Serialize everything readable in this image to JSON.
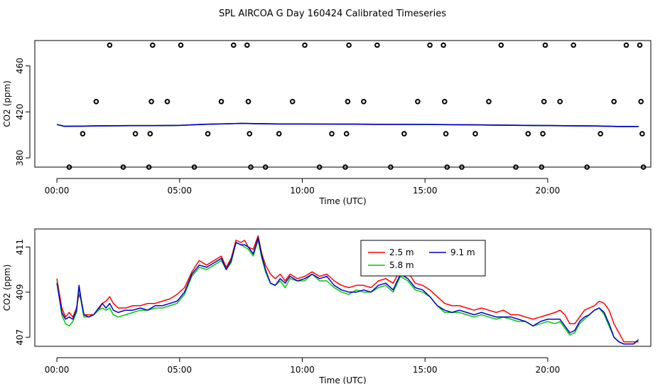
{
  "title": "SPL AIRCOA G  Day 160424  Calibrated Timeseries",
  "chart_data": [
    {
      "type": "scatter",
      "xlabel": "Time (UTC)",
      "ylabel": "CO2 (ppm)",
      "xlim": [
        -0.9,
        24.2
      ],
      "ylim": [
        372,
        482
      ],
      "x_ticks": [
        0,
        5,
        10,
        15,
        20
      ],
      "x_tick_labels": [
        "00:00",
        "05:00",
        "10:00",
        "15:00",
        "20:00"
      ],
      "y_ticks": [
        380,
        420,
        460
      ],
      "y_tick_labels": [
        "380",
        "420",
        "460"
      ],
      "calibration_points": [
        [
          0.5,
          372
        ],
        [
          1.05,
          401
        ],
        [
          1.6,
          429
        ],
        [
          2.15,
          478
        ],
        [
          2.7,
          372
        ],
        [
          3.2,
          401
        ],
        [
          3.75,
          372
        ],
        [
          3.8,
          401
        ],
        [
          3.85,
          429
        ],
        [
          3.9,
          478
        ],
        [
          4.5,
          429
        ],
        [
          5.05,
          478
        ],
        [
          5.6,
          372
        ],
        [
          6.15,
          401
        ],
        [
          6.7,
          429
        ],
        [
          7.2,
          478
        ],
        [
          7.75,
          478
        ],
        [
          7.8,
          429
        ],
        [
          7.85,
          401
        ],
        [
          7.9,
          372
        ],
        [
          8.5,
          372
        ],
        [
          9.05,
          401
        ],
        [
          9.6,
          429
        ],
        [
          10.1,
          478
        ],
        [
          10.7,
          372
        ],
        [
          11.2,
          401
        ],
        [
          11.75,
          372
        ],
        [
          11.8,
          401
        ],
        [
          11.85,
          429
        ],
        [
          11.9,
          478
        ],
        [
          12.5,
          429
        ],
        [
          13.05,
          478
        ],
        [
          13.6,
          372
        ],
        [
          14.15,
          401
        ],
        [
          14.7,
          429
        ],
        [
          15.2,
          478
        ],
        [
          15.75,
          478
        ],
        [
          15.8,
          429
        ],
        [
          15.85,
          401
        ],
        [
          15.9,
          372
        ],
        [
          16.5,
          372
        ],
        [
          17.05,
          401
        ],
        [
          17.6,
          429
        ],
        [
          18.1,
          478
        ],
        [
          18.7,
          372
        ],
        [
          19.2,
          401
        ],
        [
          19.75,
          372
        ],
        [
          19.8,
          401
        ],
        [
          19.85,
          429
        ],
        [
          19.9,
          478
        ],
        [
          20.5,
          429
        ],
        [
          21.05,
          478
        ],
        [
          21.6,
          372
        ],
        [
          22.15,
          401
        ],
        [
          22.7,
          429
        ],
        [
          23.2,
          478
        ],
        [
          23.75,
          478
        ],
        [
          23.8,
          429
        ],
        [
          23.85,
          401
        ],
        [
          23.9,
          372
        ]
      ],
      "series": [
        {
          "color": "#ff0000",
          "x": [
            0,
            0.3,
            1,
            2,
            3,
            4,
            5,
            6,
            7,
            7.5,
            8,
            9,
            10,
            11,
            12,
            13,
            14,
            15,
            16,
            17,
            18,
            19,
            20,
            21,
            22,
            23,
            23.7
          ],
          "values": [
            409,
            407.5,
            407.6,
            407.9,
            408.0,
            408.0,
            408.3,
            409.2,
            409.7,
            410.0,
            409.8,
            409.5,
            409.5,
            409.4,
            409.3,
            409.2,
            409.2,
            409.1,
            408.9,
            408.7,
            408.5,
            408.3,
            408.1,
            407.9,
            407.7,
            407.3,
            407.2
          ]
        },
        {
          "color": "#00cc00",
          "x": [
            0,
            0.3,
            1,
            2,
            3,
            4,
            5,
            6,
            7,
            7.5,
            8,
            9,
            10,
            11,
            12,
            13,
            14,
            15,
            16,
            17,
            18,
            19,
            20,
            21,
            22,
            23,
            23.7
          ],
          "values": [
            409,
            407.5,
            407.6,
            407.9,
            408.0,
            408.0,
            408.3,
            409.2,
            409.7,
            410.0,
            409.8,
            409.5,
            409.5,
            409.4,
            409.3,
            409.2,
            409.2,
            409.1,
            408.9,
            408.7,
            408.5,
            408.3,
            408.1,
            407.9,
            407.7,
            407.3,
            407.2
          ]
        },
        {
          "color": "#0000cc",
          "x": [
            0,
            0.3,
            1,
            2,
            3,
            4,
            5,
            6,
            7,
            7.5,
            8,
            9,
            10,
            11,
            12,
            13,
            14,
            15,
            16,
            17,
            18,
            19,
            20,
            21,
            22,
            23,
            23.7
          ],
          "values": [
            409,
            407.5,
            407.6,
            407.9,
            408.0,
            408.0,
            408.3,
            409.2,
            409.7,
            410.0,
            409.8,
            409.5,
            409.5,
            409.4,
            409.3,
            409.2,
            409.2,
            409.1,
            408.9,
            408.7,
            408.5,
            408.3,
            408.1,
            407.9,
            407.7,
            407.3,
            407.2
          ]
        }
      ]
    },
    {
      "type": "line",
      "xlabel": "Time (UTC)",
      "ylabel": "CO2 (ppm)",
      "xlim": [
        -0.9,
        24.2
      ],
      "ylim": [
        406.6,
        411.8
      ],
      "x_ticks": [
        0,
        5,
        10,
        15,
        20
      ],
      "x_tick_labels": [
        "00:00",
        "05:00",
        "10:00",
        "15:00",
        "20:00"
      ],
      "y_ticks": [
        407,
        409,
        411
      ],
      "y_tick_labels": [
        "407",
        "409",
        "411"
      ],
      "legend": "top-center",
      "series": [
        {
          "name": "2.5 m",
          "color": "#ff0000",
          "x": [
            0,
            0.2,
            0.35,
            0.5,
            0.65,
            0.8,
            0.9,
            1.0,
            1.1,
            1.3,
            1.5,
            1.7,
            1.85,
            2.0,
            2.15,
            2.3,
            2.5,
            2.8,
            3.1,
            3.4,
            3.7,
            4.0,
            4.3,
            4.6,
            4.9,
            5.2,
            5.5,
            5.8,
            6.1,
            6.4,
            6.7,
            6.9,
            7.1,
            7.3,
            7.5,
            7.65,
            7.8,
            8.0,
            8.2,
            8.35,
            8.5,
            8.7,
            8.9,
            9.1,
            9.3,
            9.5,
            9.8,
            10.1,
            10.4,
            10.7,
            11.0,
            11.3,
            11.6,
            11.9,
            12.2,
            12.5,
            12.8,
            13.1,
            13.4,
            13.7,
            14.0,
            14.3,
            14.6,
            14.9,
            15.2,
            15.5,
            15.8,
            16.1,
            16.4,
            16.7,
            17.0,
            17.3,
            17.6,
            17.9,
            18.2,
            18.5,
            18.8,
            19.1,
            19.4,
            19.7,
            20.0,
            20.3,
            20.5,
            20.7,
            20.9,
            21.1,
            21.3,
            21.5,
            21.7,
            21.9,
            22.1,
            22.3,
            22.5,
            22.7,
            22.9,
            23.1,
            23.3,
            23.5,
            23.7
          ],
          "values": [
            409.6,
            408.3,
            407.9,
            408.1,
            407.9,
            408.3,
            408.9,
            408.6,
            408.0,
            408.0,
            408.0,
            408.2,
            408.5,
            408.6,
            408.8,
            408.5,
            408.3,
            408.3,
            408.4,
            408.4,
            408.5,
            408.5,
            408.6,
            408.7,
            408.9,
            409.2,
            409.9,
            410.4,
            410.2,
            410.4,
            410.6,
            410.1,
            410.5,
            411.3,
            411.2,
            411.3,
            411.0,
            410.9,
            411.5,
            410.7,
            410.2,
            409.8,
            409.6,
            409.8,
            409.5,
            409.8,
            409.6,
            409.7,
            409.9,
            409.7,
            409.8,
            409.5,
            409.3,
            409.2,
            409.3,
            409.3,
            409.2,
            409.5,
            409.6,
            409.4,
            410.0,
            409.9,
            409.4,
            409.3,
            409.1,
            408.8,
            408.5,
            408.4,
            408.4,
            408.3,
            408.2,
            408.3,
            408.2,
            408.1,
            408.2,
            408.0,
            408.0,
            407.9,
            407.8,
            407.9,
            408.0,
            408.1,
            408.2,
            408.0,
            407.6,
            407.6,
            407.9,
            408.2,
            408.3,
            408.4,
            408.6,
            408.5,
            408.2,
            407.6,
            407.2,
            406.8,
            406.8,
            406.8,
            406.8
          ]
        },
        {
          "name": "5.8 m",
          "color": "#00cc00",
          "x": [
            0,
            0.2,
            0.35,
            0.5,
            0.65,
            0.8,
            0.9,
            1.0,
            1.1,
            1.3,
            1.5,
            1.7,
            1.85,
            2.0,
            2.15,
            2.3,
            2.5,
            2.8,
            3.1,
            3.4,
            3.7,
            4.0,
            4.3,
            4.6,
            4.9,
            5.2,
            5.5,
            5.8,
            6.1,
            6.4,
            6.7,
            6.9,
            7.1,
            7.3,
            7.5,
            7.65,
            7.8,
            8.0,
            8.2,
            8.35,
            8.5,
            8.7,
            8.9,
            9.1,
            9.3,
            9.5,
            9.8,
            10.1,
            10.4,
            10.7,
            11.0,
            11.3,
            11.6,
            11.9,
            12.2,
            12.5,
            12.8,
            13.1,
            13.4,
            13.7,
            14.0,
            14.3,
            14.6,
            14.9,
            15.2,
            15.5,
            15.8,
            16.1,
            16.4,
            16.7,
            17.0,
            17.3,
            17.6,
            17.9,
            18.2,
            18.5,
            18.8,
            19.1,
            19.4,
            19.7,
            20.0,
            20.3,
            20.5,
            20.7,
            20.9,
            21.1,
            21.3,
            21.5,
            21.7,
            21.9,
            22.1,
            22.3,
            22.5,
            22.7,
            22.9,
            23.1,
            23.3,
            23.5,
            23.7
          ],
          "values": [
            409.5,
            408.0,
            407.6,
            407.5,
            407.7,
            408.1,
            409.2,
            408.5,
            407.9,
            407.9,
            408.0,
            408.2,
            408.3,
            408.2,
            408.3,
            408.0,
            407.9,
            408.0,
            408.1,
            408.2,
            408.2,
            408.3,
            408.3,
            408.4,
            408.5,
            408.9,
            409.7,
            410.1,
            410.0,
            410.2,
            410.4,
            410.0,
            410.3,
            411.2,
            411.1,
            411.0,
            410.9,
            410.6,
            411.3,
            410.5,
            409.9,
            409.4,
            409.3,
            409.5,
            409.2,
            409.6,
            409.5,
            409.5,
            409.8,
            409.5,
            409.5,
            409.2,
            409.0,
            408.9,
            409.1,
            409.0,
            409.0,
            409.2,
            409.3,
            409.0,
            409.7,
            409.5,
            409.1,
            409.0,
            408.8,
            408.4,
            408.1,
            408.1,
            408.1,
            408.0,
            407.9,
            408.0,
            407.9,
            407.8,
            407.9,
            407.8,
            407.7,
            407.7,
            407.5,
            407.6,
            407.7,
            407.6,
            407.7,
            407.4,
            407.1,
            407.2,
            407.6,
            407.8,
            408.0,
            408.2,
            408.3,
            408.0,
            407.5,
            407.0,
            406.8,
            406.7,
            406.7,
            406.7,
            406.9
          ]
        },
        {
          "name": "9.1 m",
          "color": "#0000cc",
          "x": [
            0,
            0.2,
            0.35,
            0.5,
            0.65,
            0.8,
            0.9,
            1.0,
            1.1,
            1.3,
            1.5,
            1.7,
            1.85,
            2.0,
            2.15,
            2.3,
            2.5,
            2.8,
            3.1,
            3.4,
            3.7,
            4.0,
            4.3,
            4.6,
            4.9,
            5.2,
            5.5,
            5.8,
            6.1,
            6.4,
            6.7,
            6.9,
            7.1,
            7.3,
            7.5,
            7.65,
            7.8,
            8.0,
            8.2,
            8.35,
            8.5,
            8.7,
            8.9,
            9.1,
            9.3,
            9.5,
            9.8,
            10.1,
            10.4,
            10.7,
            11.0,
            11.3,
            11.6,
            11.9,
            12.2,
            12.5,
            12.8,
            13.1,
            13.4,
            13.7,
            14.0,
            14.3,
            14.6,
            14.9,
            15.2,
            15.5,
            15.8,
            16.1,
            16.4,
            16.7,
            17.0,
            17.3,
            17.6,
            17.9,
            18.2,
            18.5,
            18.8,
            19.1,
            19.4,
            19.7,
            20.0,
            20.3,
            20.5,
            20.7,
            20.9,
            21.1,
            21.3,
            21.5,
            21.7,
            21.9,
            22.1,
            22.3,
            22.5,
            22.7,
            22.9,
            23.1,
            23.3,
            23.5,
            23.7
          ],
          "values": [
            409.4,
            408.1,
            407.8,
            407.9,
            407.8,
            408.2,
            409.3,
            408.6,
            408.0,
            407.9,
            408.0,
            408.3,
            408.5,
            408.3,
            408.5,
            408.2,
            408.1,
            408.2,
            408.2,
            408.3,
            408.2,
            408.4,
            408.4,
            408.5,
            408.6,
            409.0,
            409.8,
            410.2,
            410.1,
            410.3,
            410.5,
            410.0,
            410.4,
            411.2,
            411.1,
            411.1,
            411.0,
            410.7,
            411.4,
            410.6,
            410.0,
            409.4,
            409.3,
            409.6,
            409.4,
            409.7,
            409.5,
            409.6,
            409.8,
            409.6,
            409.7,
            409.3,
            409.1,
            409.0,
            409.0,
            409.1,
            409.0,
            409.3,
            409.4,
            409.1,
            409.8,
            409.6,
            409.2,
            409.1,
            408.8,
            408.4,
            408.2,
            408.1,
            408.2,
            408.1,
            408.0,
            408.1,
            408.0,
            407.9,
            407.9,
            407.9,
            407.8,
            407.7,
            407.5,
            407.7,
            407.8,
            407.8,
            407.8,
            407.5,
            407.2,
            407.3,
            407.7,
            407.9,
            408.0,
            408.2,
            408.3,
            408.1,
            407.6,
            407.0,
            406.8,
            406.7,
            406.7,
            406.7,
            406.9
          ]
        }
      ]
    }
  ]
}
